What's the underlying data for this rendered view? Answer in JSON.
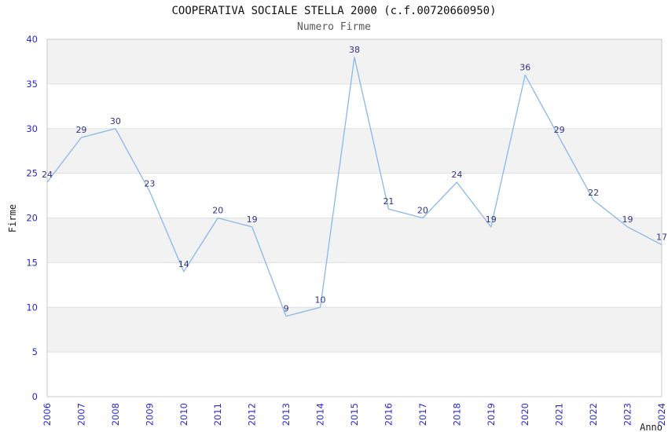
{
  "header": {
    "title": "COOPERATIVA SOCIALE STELLA 2000 (c.f.00720660950)",
    "subtitle": "Numero Firme"
  },
  "chart_data": {
    "type": "line",
    "title": "COOPERATIVA SOCIALE STELLA 2000 (c.f.00720660950)",
    "subtitle": "Numero Firme",
    "xlabel": "Anno",
    "ylabel": "Firme",
    "categories": [
      "2006",
      "2007",
      "2008",
      "2009",
      "2010",
      "2011",
      "2012",
      "2013",
      "2014",
      "2015",
      "2016",
      "2017",
      "2018",
      "2019",
      "2020",
      "2021",
      "2022",
      "2023",
      "2024"
    ],
    "series": [
      {
        "name": "Numero Firme",
        "values": [
          24,
          29,
          30,
          23,
          14,
          20,
          19,
          9,
          10,
          38,
          21,
          20,
          24,
          19,
          36,
          29,
          22,
          19,
          17
        ]
      }
    ],
    "point_labels_shown": true,
    "ylim": [
      0,
      40
    ],
    "ytick_step": 5,
    "yticks": [
      0,
      5,
      10,
      15,
      20,
      25,
      30,
      35,
      40
    ],
    "grid": "horizontal-bands-alternating",
    "legend": "none",
    "colors": {
      "line": "#88b8ea",
      "point_label": "#323284",
      "tick_label": "#2828cc",
      "band_fill": "#f2f2f2",
      "band_alt_fill": "#ffffff",
      "gridline": "#e0e0e0",
      "plot_border": "#c8c8c8",
      "title": "#101010",
      "subtitle": "#585858",
      "axis_label": "#1a1a1a",
      "background": "#ffffff"
    }
  }
}
